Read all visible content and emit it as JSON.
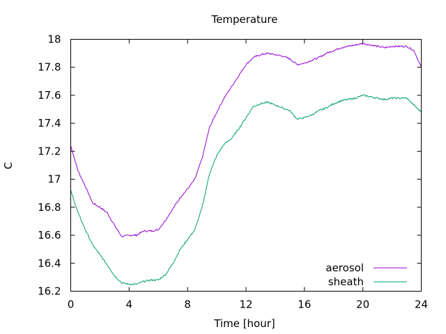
{
  "chart_data": {
    "type": "line",
    "title": "Temperature",
    "xlabel": "Time [hour]",
    "ylabel": "C",
    "xlim": [
      0,
      24
    ],
    "ylim": [
      16.2,
      18
    ],
    "xticks": [
      0,
      4,
      8,
      12,
      16,
      20,
      24
    ],
    "yticks": [
      16.2,
      16.4,
      16.6,
      16.8,
      17,
      17.2,
      17.4,
      17.6,
      17.8,
      18
    ],
    "xtick_labels": [
      "0",
      "4",
      "8",
      "12",
      "16",
      "20",
      "24"
    ],
    "ytick_labels": [
      "16.2",
      "16.4",
      "16.6",
      "16.8",
      "17",
      "17.2",
      "17.4",
      "17.6",
      "17.8",
      "18"
    ],
    "grid": false,
    "legend_position": "bottom-right",
    "series": [
      {
        "name": "aerosol",
        "color": "#9400d3",
        "x": [
          0,
          0.5,
          1,
          1.5,
          2,
          2.5,
          3,
          3.5,
          4,
          4.5,
          5,
          5.5,
          6,
          6.5,
          7,
          7.5,
          8,
          8.5,
          9,
          9.5,
          10,
          10.5,
          11,
          11.5,
          12,
          12.5,
          13,
          13.5,
          14,
          14.5,
          15,
          15.5,
          16,
          16.5,
          17,
          17.5,
          18,
          18.5,
          19,
          19.5,
          20,
          20.5,
          21,
          21.5,
          22,
          22.5,
          23,
          23.5,
          24
        ],
        "y": [
          17.24,
          17.06,
          16.95,
          16.83,
          16.8,
          16.76,
          16.67,
          16.59,
          16.6,
          16.6,
          16.63,
          16.63,
          16.64,
          16.71,
          16.79,
          16.87,
          16.93,
          17.0,
          17.15,
          17.37,
          17.48,
          17.58,
          17.66,
          17.74,
          17.82,
          17.87,
          17.89,
          17.9,
          17.89,
          17.88,
          17.86,
          17.82,
          17.83,
          17.85,
          17.87,
          17.9,
          17.92,
          17.94,
          17.95,
          17.96,
          17.97,
          17.96,
          17.95,
          17.94,
          17.95,
          17.95,
          17.95,
          17.92,
          17.8
        ]
      },
      {
        "name": "sheath",
        "color": "#009e73",
        "x": [
          0,
          0.5,
          1,
          1.5,
          2,
          2.5,
          3,
          3.5,
          4,
          4.5,
          5,
          5.5,
          6,
          6.5,
          7,
          7.5,
          8,
          8.5,
          9,
          9.5,
          10,
          10.5,
          11,
          11.5,
          12,
          12.5,
          13,
          13.5,
          14,
          14.5,
          15,
          15.5,
          16,
          16.5,
          17,
          17.5,
          18,
          18.5,
          19,
          19.5,
          20,
          20.5,
          21,
          21.5,
          22,
          22.5,
          23,
          23.5,
          24
        ],
        "y": [
          16.92,
          16.76,
          16.64,
          16.53,
          16.46,
          16.39,
          16.31,
          16.26,
          16.25,
          16.25,
          16.27,
          16.28,
          16.28,
          16.32,
          16.4,
          16.5,
          16.57,
          16.64,
          16.8,
          17.04,
          17.17,
          17.25,
          17.29,
          17.36,
          17.44,
          17.52,
          17.54,
          17.55,
          17.53,
          17.51,
          17.49,
          17.43,
          17.44,
          17.46,
          17.49,
          17.51,
          17.54,
          17.56,
          17.57,
          17.58,
          17.6,
          17.59,
          17.58,
          17.57,
          17.58,
          17.58,
          17.58,
          17.53,
          17.48
        ]
      }
    ]
  }
}
